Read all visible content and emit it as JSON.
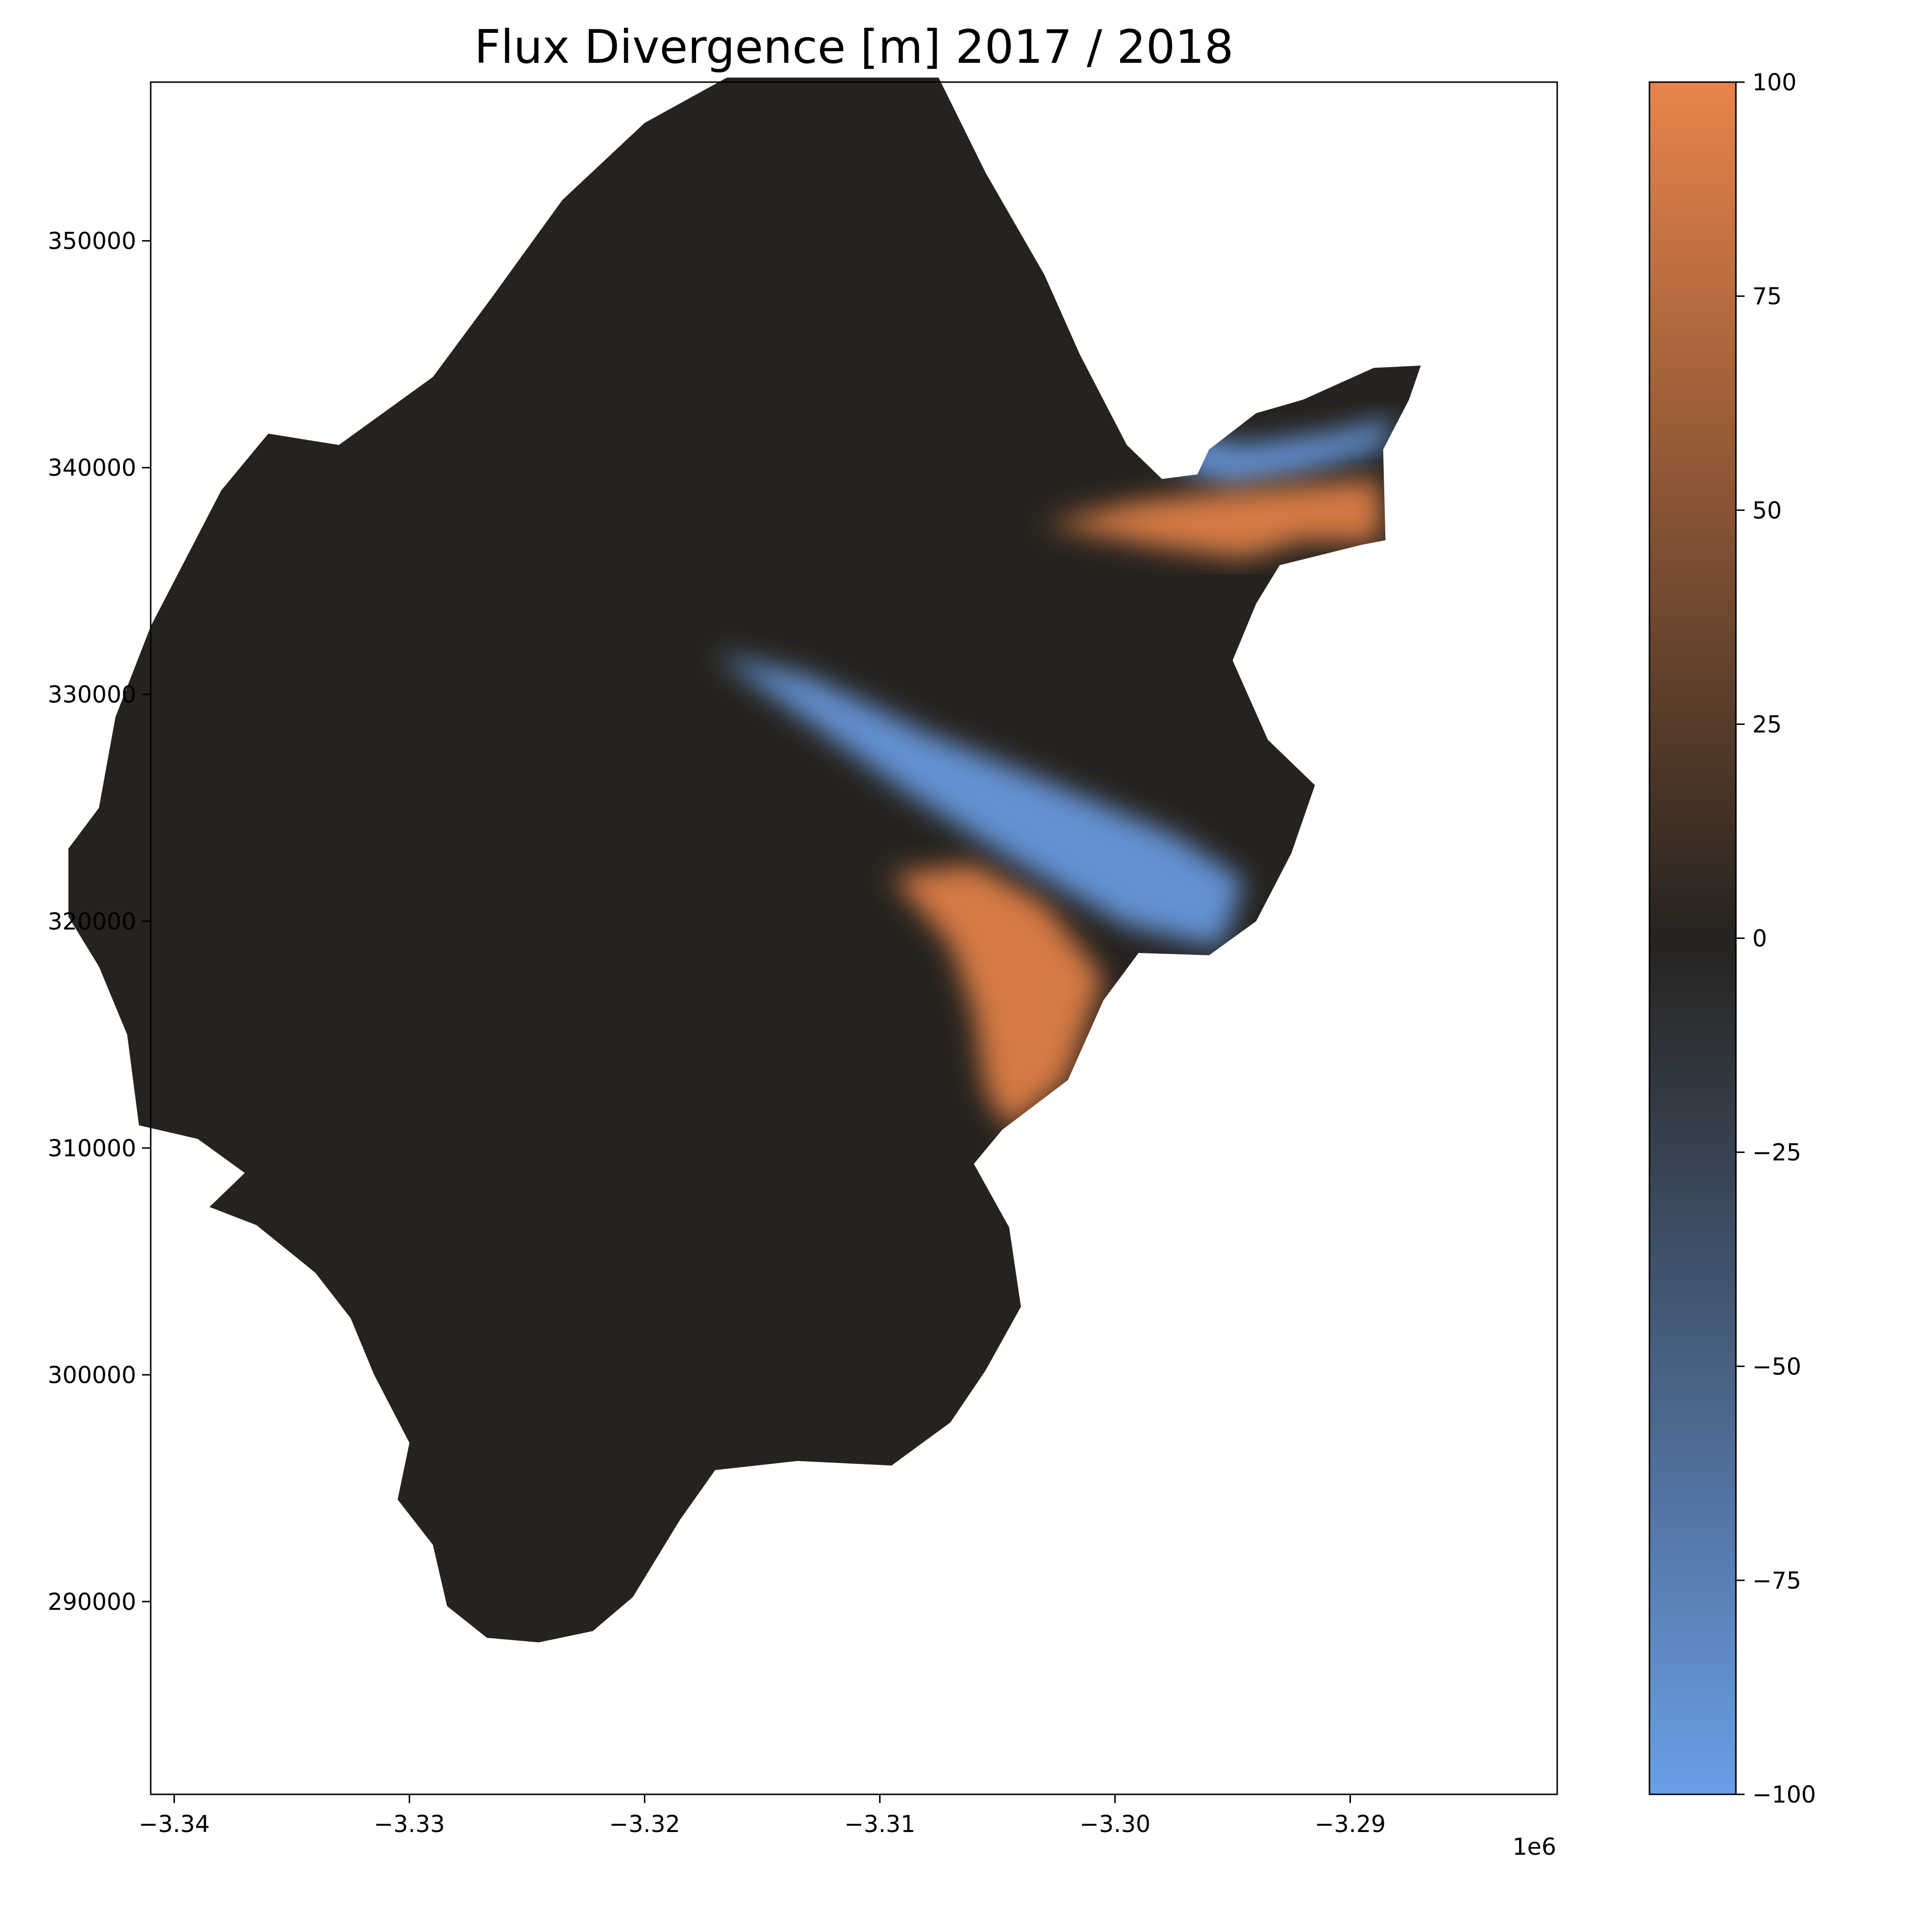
{
  "chart_data": {
    "type": "heatmap",
    "title": "Flux Divergence [m] 2017 / 2018",
    "xlabel": "",
    "ylabel": "",
    "x_ticks": [
      "−3.34",
      "−3.33",
      "−3.32",
      "−3.31",
      "−3.30",
      "−3.29"
    ],
    "x_tick_values": [
      -3.34,
      -3.33,
      -3.32,
      -3.31,
      -3.3,
      -3.29
    ],
    "x_offset_label": "1e6",
    "xlim": [
      -3.341,
      -3.2812
    ],
    "y_ticks": [
      "290000",
      "300000",
      "310000",
      "320000",
      "330000",
      "340000",
      "350000"
    ],
    "y_tick_values": [
      290000,
      300000,
      310000,
      320000,
      330000,
      340000,
      350000
    ],
    "ylim": [
      281500,
      357000
    ],
    "colorbar": {
      "ticks": [
        "100",
        "75",
        "50",
        "25",
        "0",
        "−25",
        "−50",
        "−75",
        "−100"
      ],
      "tick_values": [
        100,
        75,
        50,
        25,
        0,
        -25,
        -50,
        -75,
        -100
      ],
      "range": [
        -100,
        100
      ],
      "color_min": "#6a9ee6",
      "color_zero": "#26231f",
      "color_max": "#e8844a"
    },
    "grid": false,
    "legend": "none",
    "glacier_outline": [
      [
        -3.3284,
        289.8
      ],
      [
        -3.3267,
        288.4
      ],
      [
        -3.3245,
        288.2
      ],
      [
        -3.3222,
        288.7
      ],
      [
        -3.3205,
        290.2
      ],
      [
        -3.3185,
        293.6
      ],
      [
        -3.317,
        295.8
      ],
      [
        -3.3135,
        296.2
      ],
      [
        -3.3095,
        296.0
      ],
      [
        -3.307,
        297.9
      ],
      [
        -3.3055,
        300.2
      ],
      [
        -3.304,
        303.0
      ],
      [
        -3.3045,
        306.5
      ],
      [
        -3.306,
        309.3
      ],
      [
        -3.3048,
        310.8
      ],
      [
        -3.302,
        313.0
      ],
      [
        -3.3005,
        316.5
      ],
      [
        -3.299,
        318.6
      ],
      [
        -3.296,
        318.5
      ],
      [
        -3.294,
        320.0
      ],
      [
        -3.2925,
        323.0
      ],
      [
        -3.2915,
        326.0
      ],
      [
        -3.2935,
        328.0
      ],
      [
        -3.295,
        331.5
      ],
      [
        -3.294,
        334.0
      ],
      [
        -3.293,
        335.7
      ],
      [
        -3.2895,
        336.6
      ],
      [
        -3.2885,
        336.8
      ],
      [
        -3.2886,
        340.8
      ],
      [
        -3.2875,
        343.0
      ],
      [
        -3.287,
        344.5
      ],
      [
        -3.289,
        344.4
      ],
      [
        -3.292,
        343.0
      ],
      [
        -3.294,
        342.4
      ],
      [
        -3.296,
        340.8
      ],
      [
        -3.2965,
        339.7
      ],
      [
        -3.298,
        339.5
      ],
      [
        -3.2995,
        341.0
      ],
      [
        -3.3015,
        345.0
      ],
      [
        -3.303,
        348.5
      ],
      [
        -3.3055,
        353.0
      ],
      [
        -3.3075,
        357.2
      ],
      [
        -3.3165,
        357.2
      ],
      [
        -3.32,
        355.2
      ],
      [
        -3.3235,
        351.8
      ],
      [
        -3.3265,
        347.5
      ],
      [
        -3.329,
        344.0
      ],
      [
        -3.333,
        341.0
      ],
      [
        -3.336,
        341.5
      ],
      [
        -3.338,
        339.0
      ],
      [
        -3.339,
        337.0
      ],
      [
        -3.341,
        333.0
      ],
      [
        -3.3425,
        329.0
      ],
      [
        -3.3432,
        325.0
      ],
      [
        -3.3445,
        323.2
      ],
      [
        -3.3445,
        320.2
      ],
      [
        -3.3432,
        318.0
      ],
      [
        -3.342,
        315.0
      ],
      [
        -3.3415,
        311.0
      ],
      [
        -3.339,
        310.4
      ],
      [
        -3.337,
        308.9
      ],
      [
        -3.3385,
        307.4
      ],
      [
        -3.3365,
        306.6
      ],
      [
        -3.334,
        304.5
      ],
      [
        -3.3325,
        302.5
      ],
      [
        -3.3315,
        300.0
      ],
      [
        -3.33,
        297.0
      ],
      [
        -3.3305,
        294.5
      ],
      [
        -3.329,
        292.5
      ]
    ],
    "features": [
      {
        "sign": "positive",
        "path": [
          [
            -3.306,
            322.5
          ],
          [
            -3.303,
            320.8
          ],
          [
            -3.3005,
            317.5
          ],
          [
            -3.302,
            313.0
          ],
          [
            -3.3045,
            310.8
          ],
          [
            -3.3055,
            312.5
          ],
          [
            -3.306,
            316.0
          ],
          [
            -3.307,
            319.0
          ],
          [
            -3.3095,
            322.0
          ]
        ]
      },
      {
        "sign": "negative",
        "path": [
          [
            -3.317,
            331.8
          ],
          [
            -3.313,
            328.8
          ],
          [
            -3.309,
            325.8
          ],
          [
            -3.3045,
            322.8
          ],
          [
            -3.2995,
            319.8
          ],
          [
            -3.2955,
            318.8
          ],
          [
            -3.2945,
            321.8
          ],
          [
            -3.2975,
            323.8
          ],
          [
            -3.3025,
            326.0
          ],
          [
            -3.308,
            328.3
          ],
          [
            -3.313,
            330.8
          ]
        ]
      },
      {
        "sign": "negative",
        "path": [
          [
            -3.2975,
            340.0
          ],
          [
            -3.295,
            339.2
          ],
          [
            -3.292,
            339.8
          ],
          [
            -3.2887,
            340.8
          ],
          [
            -3.288,
            342.2
          ],
          [
            -3.291,
            341.5
          ],
          [
            -3.2945,
            341.0
          ],
          [
            -3.297,
            341.5
          ]
        ]
      },
      {
        "sign": "positive",
        "path": [
          [
            -3.303,
            337.5
          ],
          [
            -3.299,
            338.5
          ],
          [
            -3.295,
            339.0
          ],
          [
            -3.2887,
            339.5
          ],
          [
            -3.2887,
            336.7
          ],
          [
            -3.292,
            336.8
          ],
          [
            -3.2945,
            336.0
          ],
          [
            -3.298,
            336.5
          ]
        ]
      }
    ]
  }
}
